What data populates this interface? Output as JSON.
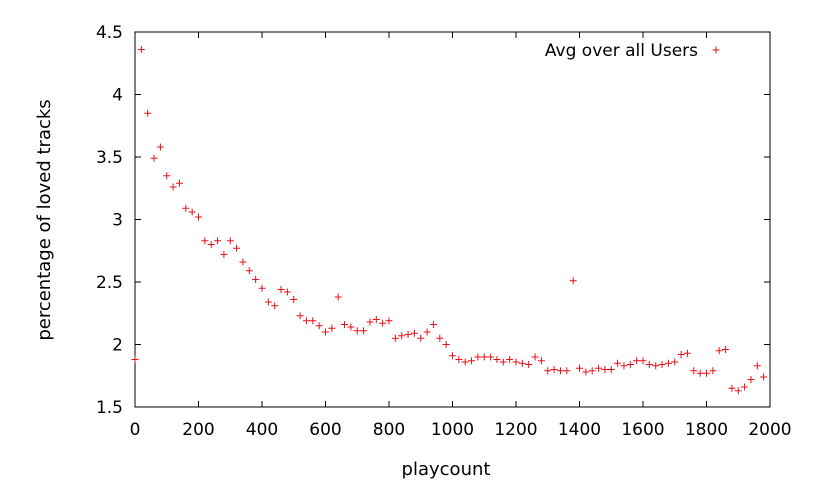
{
  "chart_data": {
    "type": "scatter",
    "title": "",
    "xlabel": "playcount",
    "ylabel": "percentage of loved tracks",
    "xlim": [
      0,
      2000
    ],
    "ylim": [
      1.5,
      4.5
    ],
    "xticks": [
      0,
      200,
      400,
      600,
      800,
      1000,
      1200,
      1400,
      1600,
      1800,
      2000
    ],
    "yticks": [
      1.5,
      2,
      2.5,
      3,
      3.5,
      4,
      4.5
    ],
    "xtick_labels": [
      "0",
      "200",
      "400",
      "600",
      "800",
      "1000",
      "1200",
      "1400",
      "1600",
      "1800",
      "2000"
    ],
    "ytick_labels": [
      "1.5",
      "2",
      "2.5",
      "3",
      "3.5",
      "4",
      "4.5"
    ],
    "grid": false,
    "legend_position": "top-right",
    "colors": {
      "series": "#e8101a",
      "axis": "#000000"
    },
    "series": [
      {
        "name": "Avg over all Users",
        "marker": "plus",
        "x": [
          0,
          20,
          40,
          60,
          80,
          100,
          120,
          140,
          160,
          180,
          200,
          220,
          240,
          260,
          280,
          300,
          320,
          340,
          360,
          380,
          400,
          420,
          440,
          460,
          480,
          500,
          520,
          540,
          560,
          580,
          600,
          620,
          640,
          660,
          680,
          700,
          720,
          740,
          760,
          780,
          800,
          820,
          840,
          860,
          880,
          900,
          920,
          940,
          960,
          980,
          1000,
          1020,
          1040,
          1060,
          1080,
          1100,
          1120,
          1140,
          1160,
          1180,
          1200,
          1220,
          1240,
          1260,
          1280,
          1300,
          1320,
          1340,
          1360,
          1380,
          1400,
          1420,
          1440,
          1460,
          1480,
          1500,
          1520,
          1540,
          1560,
          1580,
          1600,
          1620,
          1640,
          1660,
          1680,
          1700,
          1720,
          1740,
          1760,
          1780,
          1800,
          1820,
          1840,
          1860,
          1880,
          1900,
          1920,
          1940,
          1960,
          1980
        ],
        "y": [
          1.88,
          4.36,
          3.85,
          3.49,
          3.58,
          3.35,
          3.26,
          3.29,
          3.09,
          3.06,
          3.02,
          2.83,
          2.8,
          2.83,
          2.72,
          2.83,
          2.77,
          2.66,
          2.59,
          2.52,
          2.45,
          2.34,
          2.31,
          2.44,
          2.42,
          2.36,
          2.23,
          2.19,
          2.19,
          2.15,
          2.1,
          2.13,
          2.38,
          2.16,
          2.14,
          2.11,
          2.11,
          2.18,
          2.2,
          2.17,
          2.19,
          2.05,
          2.07,
          2.08,
          2.09,
          2.05,
          2.1,
          2.16,
          2.05,
          2.0,
          1.91,
          1.88,
          1.86,
          1.87,
          1.9,
          1.9,
          1.9,
          1.88,
          1.86,
          1.88,
          1.86,
          1.85,
          1.84,
          1.9,
          1.87,
          1.79,
          1.8,
          1.79,
          1.79,
          2.51,
          1.81,
          1.78,
          1.79,
          1.81,
          1.8,
          1.8,
          1.85,
          1.83,
          1.84,
          1.87,
          1.87,
          1.84,
          1.83,
          1.84,
          1.85,
          1.86,
          1.92,
          1.93,
          1.79,
          1.77,
          1.77,
          1.79,
          1.95,
          1.96,
          1.65,
          1.63,
          1.66,
          1.72,
          1.83,
          1.74
        ]
      }
    ]
  }
}
